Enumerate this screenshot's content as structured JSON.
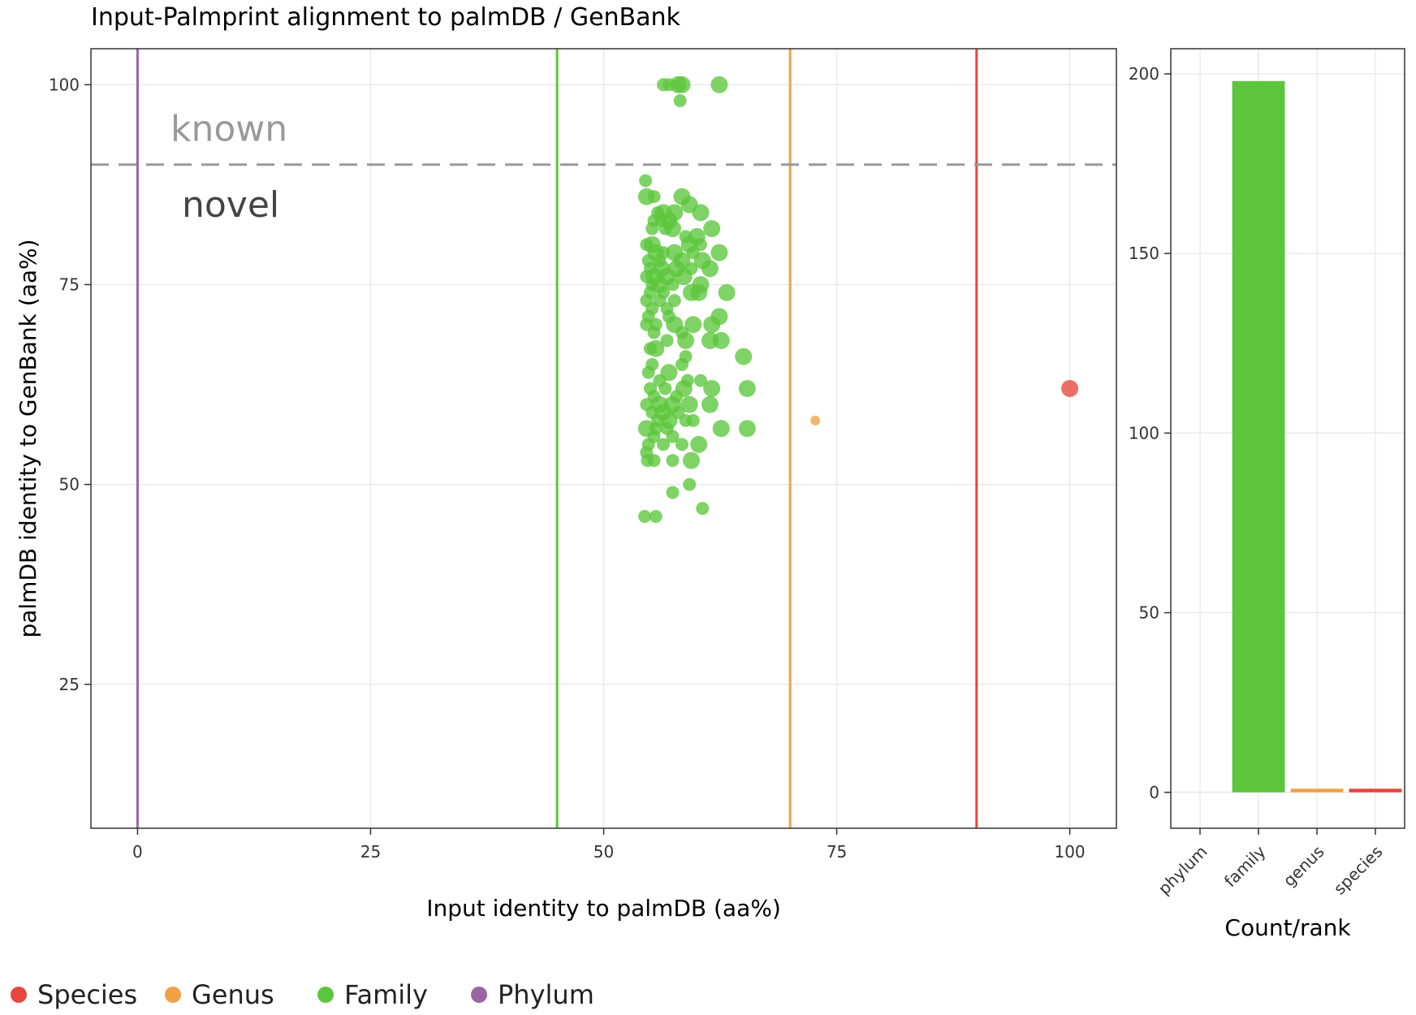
{
  "title": "Input-Palmprint alignment to palmDB / GenBank",
  "colors": {
    "species": "#e8453c",
    "genus": "#f0a143",
    "family": "#5bc63b",
    "phylum": "#9b64a6",
    "threshold": "#999999",
    "known_text": "#999999",
    "novel_text": "#444444",
    "grid": "#e6e6e6"
  },
  "chart_data": [
    {
      "type": "scatter",
      "xlabel": "Input identity to palmDB (aa%)",
      "ylabel": "palmDB identity to GenBank (aa%)",
      "xlim": [
        -5,
        105
      ],
      "ylim": [
        7,
        104.5
      ],
      "xticks": [
        0,
        25,
        50,
        75,
        100
      ],
      "yticks": [
        25,
        50,
        75,
        100
      ],
      "grid": true,
      "vlines": [
        {
          "x": 0,
          "rank": "phylum"
        },
        {
          "x": 45,
          "rank": "family"
        },
        {
          "x": 70,
          "rank": "genus"
        },
        {
          "x": 90,
          "rank": "species"
        }
      ],
      "hline": {
        "y": 90,
        "style": "dashed"
      },
      "annotations": {
        "known": "known",
        "novel": "novel"
      },
      "series": [
        {
          "name": "Family",
          "rank": "family",
          "points": [
            [
              56.4,
              100,
              2
            ],
            [
              57.0,
              100,
              2
            ],
            [
              58.0,
              100,
              3
            ],
            [
              58.4,
              100,
              3
            ],
            [
              58.2,
              98,
              2
            ],
            [
              62.4,
              100,
              3
            ],
            [
              54.5,
              88,
              2
            ],
            [
              54.6,
              86,
              3
            ],
            [
              55.4,
              86,
              2
            ],
            [
              58.4,
              86,
              3
            ],
            [
              59.2,
              85,
              3
            ],
            [
              60.4,
              84,
              3
            ],
            [
              55.8,
              84,
              2
            ],
            [
              56.4,
              84,
              3
            ],
            [
              57.6,
              84,
              3
            ],
            [
              55.4,
              83,
              2
            ],
            [
              56.2,
              83,
              2
            ],
            [
              57.0,
              83,
              3
            ],
            [
              61.6,
              82,
              3
            ],
            [
              55.2,
              82,
              2
            ],
            [
              57.4,
              82,
              3
            ],
            [
              56.6,
              82,
              2
            ],
            [
              58.8,
              81,
              2
            ],
            [
              60.0,
              81,
              3
            ],
            [
              54.6,
              80,
              2
            ],
            [
              55.2,
              80,
              3
            ],
            [
              59.2,
              80,
              3
            ],
            [
              60.4,
              80,
              2
            ],
            [
              55.6,
              79,
              3
            ],
            [
              56.4,
              79,
              2
            ],
            [
              57.6,
              79,
              3
            ],
            [
              59.6,
              79,
              2
            ],
            [
              62.4,
              79,
              3
            ],
            [
              54.8,
              78,
              2
            ],
            [
              56.0,
              78,
              2
            ],
            [
              58.4,
              78,
              3
            ],
            [
              60.6,
              78,
              3
            ],
            [
              55.0,
              77,
              2
            ],
            [
              56.2,
              77,
              3
            ],
            [
              57.8,
              77,
              3
            ],
            [
              59.4,
              77,
              2
            ],
            [
              61.4,
              77,
              3
            ],
            [
              55.4,
              76,
              3
            ],
            [
              56.8,
              76,
              3
            ],
            [
              58.6,
              76,
              3
            ],
            [
              54.6,
              76,
              2
            ],
            [
              55.2,
              75,
              2
            ],
            [
              56.0,
              75,
              3
            ],
            [
              57.4,
              75,
              2
            ],
            [
              60.4,
              75,
              3
            ],
            [
              55.0,
              74,
              2
            ],
            [
              56.4,
              74,
              2
            ],
            [
              59.4,
              74,
              3
            ],
            [
              60.2,
              74,
              3
            ],
            [
              63.2,
              74,
              3
            ],
            [
              54.6,
              73,
              2
            ],
            [
              56.0,
              73,
              2
            ],
            [
              57.6,
              73,
              2
            ],
            [
              55.2,
              72,
              2
            ],
            [
              56.8,
              72,
              2
            ],
            [
              54.8,
              71,
              2
            ],
            [
              57.0,
              71,
              2
            ],
            [
              62.4,
              71,
              3
            ],
            [
              54.6,
              70,
              2
            ],
            [
              55.6,
              70,
              2
            ],
            [
              57.6,
              70,
              3
            ],
            [
              59.6,
              70,
              3
            ],
            [
              61.6,
              70,
              3
            ],
            [
              55.4,
              69,
              2
            ],
            [
              58.4,
              69,
              2
            ],
            [
              56.8,
              68,
              2
            ],
            [
              58.8,
              68,
              3
            ],
            [
              61.4,
              68,
              3
            ],
            [
              62.6,
              68,
              3
            ],
            [
              55.0,
              67,
              2
            ],
            [
              55.6,
              67,
              3
            ],
            [
              58.8,
              66,
              2
            ],
            [
              65.0,
              66,
              3
            ],
            [
              55.2,
              65,
              2
            ],
            [
              57.0,
              64,
              3
            ],
            [
              58.4,
              65,
              2
            ],
            [
              54.8,
              64,
              2
            ],
            [
              56.0,
              63,
              2
            ],
            [
              59.0,
              63,
              2
            ],
            [
              60.4,
              63,
              2
            ],
            [
              55.0,
              62,
              2
            ],
            [
              56.6,
              62,
              2
            ],
            [
              58.6,
              62,
              3
            ],
            [
              61.6,
              62,
              3
            ],
            [
              65.4,
              62,
              3
            ],
            [
              55.4,
              61,
              2
            ],
            [
              57.8,
              61,
              2
            ],
            [
              54.6,
              60,
              2
            ],
            [
              56.0,
              60,
              3
            ],
            [
              57.4,
              60,
              3
            ],
            [
              59.2,
              60,
              3
            ],
            [
              61.4,
              60,
              3
            ],
            [
              55.2,
              59,
              2
            ],
            [
              56.4,
              59,
              3
            ],
            [
              58.0,
              59,
              2
            ],
            [
              55.8,
              58,
              2
            ],
            [
              57.0,
              58,
              3
            ],
            [
              58.8,
              58,
              2
            ],
            [
              59.6,
              58,
              2
            ],
            [
              54.6,
              57,
              3
            ],
            [
              55.6,
              57,
              2
            ],
            [
              56.8,
              57,
              2
            ],
            [
              62.6,
              57,
              3
            ],
            [
              65.4,
              57,
              3
            ],
            [
              55.4,
              56,
              2
            ],
            [
              57.4,
              56,
              2
            ],
            [
              54.8,
              55,
              2
            ],
            [
              56.4,
              55,
              2
            ],
            [
              58.4,
              55,
              2
            ],
            [
              60.2,
              55,
              3
            ],
            [
              54.6,
              54,
              2
            ],
            [
              59.4,
              53,
              3
            ],
            [
              54.7,
              53,
              2
            ],
            [
              55.4,
              53,
              2
            ],
            [
              57.4,
              53,
              2
            ],
            [
              59.2,
              50,
              2
            ],
            [
              57.4,
              49,
              2
            ],
            [
              60.6,
              47,
              2
            ],
            [
              54.4,
              46,
              2
            ],
            [
              55.6,
              46,
              2
            ]
          ]
        },
        {
          "name": "Genus",
          "rank": "genus",
          "points": [
            [
              72.7,
              58,
              1
            ]
          ]
        },
        {
          "name": "Species",
          "rank": "species",
          "points": [
            [
              100,
              62,
              3
            ]
          ]
        }
      ]
    },
    {
      "type": "bar",
      "xlabel": "Count/rank",
      "categories": [
        "phylum",
        "family",
        "genus",
        "species"
      ],
      "values": [
        0,
        198,
        1,
        1
      ],
      "ylim": [
        -10,
        207
      ],
      "yticks": [
        0,
        50,
        100,
        150,
        200
      ],
      "grid": true
    }
  ],
  "legend": [
    {
      "label": "Species",
      "rank": "species"
    },
    {
      "label": "Genus",
      "rank": "genus"
    },
    {
      "label": "Family",
      "rank": "family"
    },
    {
      "label": "Phylum",
      "rank": "phylum"
    }
  ]
}
